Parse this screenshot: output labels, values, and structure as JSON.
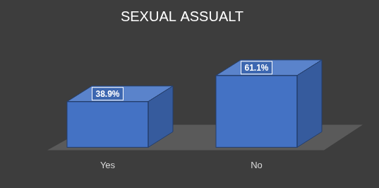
{
  "chart_data": {
    "type": "bar",
    "title": "SEXUAL ASSUALT",
    "categories": [
      "Yes",
      "No"
    ],
    "values": [
      38.9,
      61.1
    ],
    "value_labels": [
      "38.9%",
      "61.1%"
    ],
    "color": "#4472c4",
    "data_labels": true,
    "tick_labels": "x",
    "grid": false
  }
}
